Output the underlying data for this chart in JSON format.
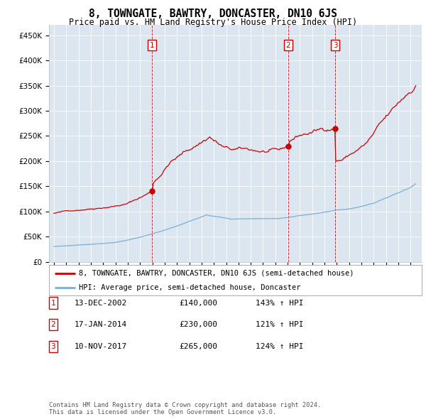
{
  "title": "8, TOWNGATE, BAWTRY, DONCASTER, DN10 6JS",
  "subtitle": "Price paid vs. HM Land Registry's House Price Index (HPI)",
  "plot_bg_color": "#dce6f1",
  "red_line_color": "#cc0000",
  "blue_line_color": "#7bafd4",
  "ylim": [
    0,
    470000
  ],
  "yticks": [
    0,
    50000,
    100000,
    150000,
    200000,
    250000,
    300000,
    350000,
    400000,
    450000
  ],
  "ytick_labels": [
    "£0",
    "£50K",
    "£100K",
    "£150K",
    "£200K",
    "£250K",
    "£300K",
    "£350K",
    "£400K",
    "£450K"
  ],
  "purchases": [
    {
      "date_num": 2002.96,
      "price": 140000,
      "label": "1"
    },
    {
      "date_num": 2014.05,
      "price": 230000,
      "label": "2"
    },
    {
      "date_num": 2017.86,
      "price": 265000,
      "label": "3"
    }
  ],
  "legend_red": "8, TOWNGATE, BAWTRY, DONCASTER, DN10 6JS (semi-detached house)",
  "legend_blue": "HPI: Average price, semi-detached house, Doncaster",
  "table_rows": [
    [
      "1",
      "13-DEC-2002",
      "£140,000",
      "143% ↑ HPI"
    ],
    [
      "2",
      "17-JAN-2014",
      "£230,000",
      "121% ↑ HPI"
    ],
    [
      "3",
      "10-NOV-2017",
      "£265,000",
      "124% ↑ HPI"
    ]
  ],
  "footnote": "Contains HM Land Registry data © Crown copyright and database right 2024.\nThis data is licensed under the Open Government Licence v3.0."
}
